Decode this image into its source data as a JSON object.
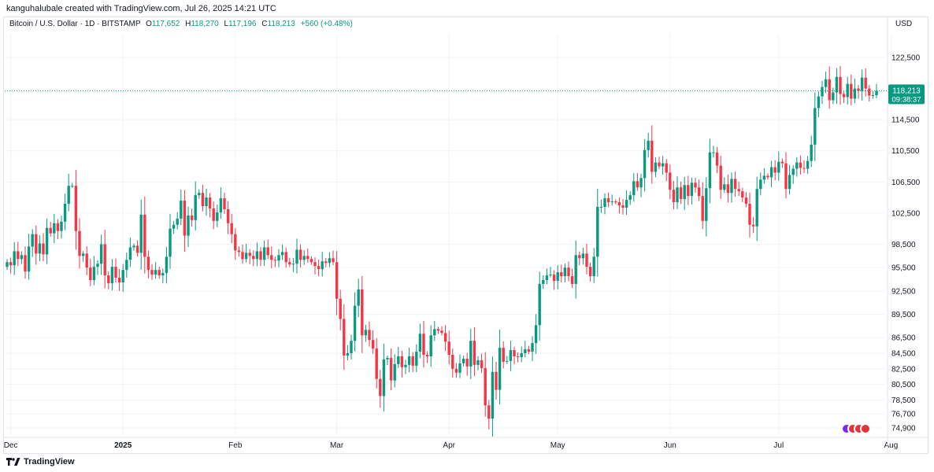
{
  "attribution": "kanguhalubale created with TradingView.com, Jul 26, 2025 14:21 UTC",
  "legend": {
    "symbol": "Bitcoin / U.S. Dollar · 1D · BITSTAMP",
    "o_label": "O",
    "o_value": "117,652",
    "h_label": "H",
    "h_value": "118,270",
    "l_label": "L",
    "l_value": "117,196",
    "c_label": "C",
    "c_value": "118,213",
    "change": "+560 (+0.48%)"
  },
  "currency": "USD",
  "price_tag": {
    "price": "118,213",
    "countdown": "09:38:37"
  },
  "footer": {
    "brand": "TradingView"
  },
  "colors": {
    "up": "#089981",
    "down": "#f23645",
    "grid": "#f0f3fa",
    "axis_text": "#131722",
    "last_line": "#089981"
  },
  "chart_data": {
    "type": "candlestick",
    "title": "Bitcoin / U.S. Dollar · 1D · BITSTAMP",
    "xlabel": "",
    "ylabel": "USD",
    "ylim": [
      74000,
      125000
    ],
    "y_ticks": [
      122500,
      114500,
      110500,
      106500,
      102500,
      98500,
      95500,
      92500,
      89500,
      86500,
      84500,
      82500,
      80500,
      78500,
      76700,
      74900
    ],
    "x_ticks": [
      {
        "index": 1,
        "label": "Dec",
        "bold": false
      },
      {
        "index": 32,
        "label": "2025",
        "bold": true
      },
      {
        "index": 63,
        "label": "Feb",
        "bold": false
      },
      {
        "index": 91,
        "label": "Mar",
        "bold": false
      },
      {
        "index": 122,
        "label": "Apr",
        "bold": false
      },
      {
        "index": 152,
        "label": "May",
        "bold": false
      },
      {
        "index": 183,
        "label": "Jun",
        "bold": false
      },
      {
        "index": 213,
        "label": "Jul",
        "bold": false
      },
      {
        "index": 244,
        "label": "Aug",
        "bold": false
      }
    ],
    "last_price": 118213,
    "closes": [
      96200,
      95800,
      97600,
      96600,
      97100,
      95000,
      98200,
      99800,
      97300,
      98600,
      97200,
      100600,
      99900,
      101200,
      100200,
      101400,
      103700,
      106000,
      106000,
      100200,
      97000,
      97300,
      95500,
      93900,
      95600,
      96000,
      98500,
      94500,
      93500,
      95600,
      94200,
      93600,
      95200,
      96500,
      98100,
      98300,
      97400,
      102300,
      96900,
      95200,
      94600,
      95200,
      94500,
      94800,
      96900,
      100500,
      101000,
      101800,
      104100,
      99600,
      102200,
      101600,
      104800,
      105100,
      103400,
      104500,
      103100,
      101500,
      102600,
      104400,
      103000,
      101200,
      99800,
      97700,
      97500,
      96600,
      97400,
      97000,
      96600,
      97600,
      96500,
      98100,
      97100,
      96500,
      96400,
      97100,
      97500,
      96200,
      95900,
      96000,
      97800,
      96500,
      97000,
      96600,
      96200,
      95700,
      95300,
      96300,
      96100,
      96700,
      96200,
      91500,
      88900,
      84200,
      84500,
      86100,
      90600,
      92700,
      86800,
      87500,
      86200,
      85100,
      81200,
      79000,
      83700,
      83900,
      81000,
      83100,
      84100,
      82700,
      83000,
      84100,
      82900,
      84700,
      87000,
      84300,
      84100,
      86800,
      87600,
      87400,
      87100,
      86000,
      84300,
      82500,
      82000,
      83200,
      83800,
      82800,
      86100,
      83000,
      83600,
      82600,
      77800,
      76100,
      82100,
      79800,
      85200,
      83400,
      83500,
      84900,
      84100,
      84000,
      84500,
      85000,
      84700,
      85800,
      88100,
      93400,
      93900,
      94500,
      94600,
      93800,
      94900,
      94400,
      95500,
      94400,
      93400,
      97100,
      96700,
      97300,
      95600,
      94400,
      96900,
      103300,
      103300,
      104400,
      103900,
      104000,
      103900,
      103500,
      103200,
      104200,
      104800,
      106600,
      105800,
      107000,
      110600,
      111800,
      107800,
      109000,
      108500,
      108900,
      107700,
      105500,
      103900,
      105800,
      104300,
      106100,
      104700,
      106400,
      105800,
      104700,
      101500,
      105700,
      110300,
      110300,
      108600,
      105500,
      106200,
      105100,
      106900,
      105600,
      105300,
      104500,
      103700,
      101000,
      100800,
      105600,
      106800,
      107300,
      107100,
      108400,
      107700,
      109100,
      108900,
      105600,
      107400,
      108200,
      109000,
      108300,
      108200,
      109200,
      111300,
      116000,
      117500,
      118700,
      119700,
      117000,
      118000,
      120000,
      117800,
      117400,
      119100,
      117200,
      118500,
      118200,
      119900,
      118500,
      117600,
      117652,
      118213
    ]
  }
}
